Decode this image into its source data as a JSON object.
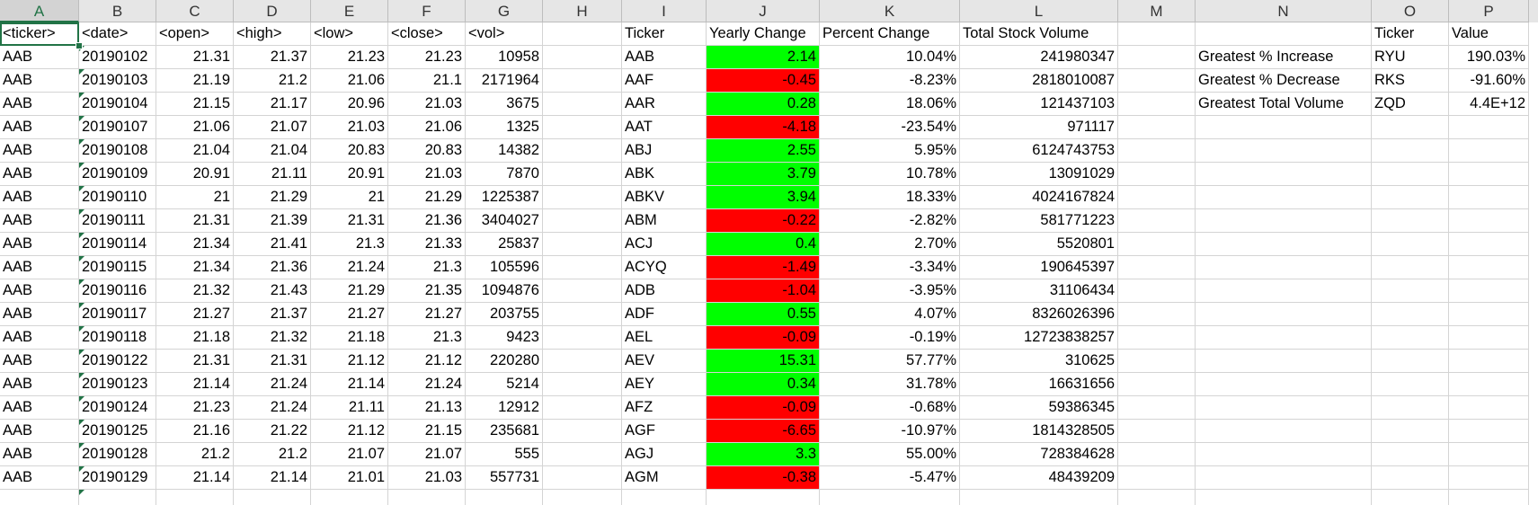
{
  "columns": [
    "A",
    "B",
    "C",
    "D",
    "E",
    "F",
    "G",
    "H",
    "I",
    "J",
    "K",
    "L",
    "M",
    "N",
    "O",
    "P"
  ],
  "selected_column": "A",
  "colors": {
    "positive": "#00ff00",
    "negative": "#ff0000",
    "accent": "#217346"
  },
  "rows": [
    [
      "<ticker>",
      "<date>",
      "<open>",
      "<high>",
      "<low>",
      "<close>",
      "<vol>",
      "",
      "Ticker",
      "Yearly Change",
      "Percent Change",
      "Total Stock Volume",
      "",
      "",
      "Ticker",
      "Value"
    ],
    [
      "AAB",
      "20190102",
      "21.31",
      "21.37",
      "21.23",
      "21.23",
      "10958",
      "",
      "AAB",
      "2.14",
      "10.04%",
      "241980347",
      "",
      "Greatest % Increase",
      "RYU",
      "190.03%"
    ],
    [
      "AAB",
      "20190103",
      "21.19",
      "21.2",
      "21.06",
      "21.1",
      "2171964",
      "",
      "AAF",
      "-0.45",
      "-8.23%",
      "2818010087",
      "",
      "Greatest % Decrease",
      "RKS",
      "-91.60%"
    ],
    [
      "AAB",
      "20190104",
      "21.15",
      "21.17",
      "20.96",
      "21.03",
      "3675",
      "",
      "AAR",
      "0.28",
      "18.06%",
      "121437103",
      "",
      "Greatest Total Volume",
      "ZQD",
      "4.4E+12"
    ],
    [
      "AAB",
      "20190107",
      "21.06",
      "21.07",
      "21.03",
      "21.06",
      "1325",
      "",
      "AAT",
      "-4.18",
      "-23.54%",
      "971117",
      "",
      "",
      "",
      ""
    ],
    [
      "AAB",
      "20190108",
      "21.04",
      "21.04",
      "20.83",
      "20.83",
      "14382",
      "",
      "ABJ",
      "2.55",
      "5.95%",
      "6124743753",
      "",
      "",
      "",
      ""
    ],
    [
      "AAB",
      "20190109",
      "20.91",
      "21.11",
      "20.91",
      "21.03",
      "7870",
      "",
      "ABK",
      "3.79",
      "10.78%",
      "13091029",
      "",
      "",
      "",
      ""
    ],
    [
      "AAB",
      "20190110",
      "21",
      "21.29",
      "21",
      "21.29",
      "1225387",
      "",
      "ABKV",
      "3.94",
      "18.33%",
      "4024167824",
      "",
      "",
      "",
      ""
    ],
    [
      "AAB",
      "20190111",
      "21.31",
      "21.39",
      "21.31",
      "21.36",
      "3404027",
      "",
      "ABM",
      "-0.22",
      "-2.82%",
      "581771223",
      "",
      "",
      "",
      ""
    ],
    [
      "AAB",
      "20190114",
      "21.34",
      "21.41",
      "21.3",
      "21.33",
      "25837",
      "",
      "ACJ",
      "0.4",
      "2.70%",
      "5520801",
      "",
      "",
      "",
      ""
    ],
    [
      "AAB",
      "20190115",
      "21.34",
      "21.36",
      "21.24",
      "21.3",
      "105596",
      "",
      "ACYQ",
      "-1.49",
      "-3.34%",
      "190645397",
      "",
      "",
      "",
      ""
    ],
    [
      "AAB",
      "20190116",
      "21.32",
      "21.43",
      "21.29",
      "21.35",
      "1094876",
      "",
      "ADB",
      "-1.04",
      "-3.95%",
      "31106434",
      "",
      "",
      "",
      ""
    ],
    [
      "AAB",
      "20190117",
      "21.27",
      "21.37",
      "21.27",
      "21.27",
      "203755",
      "",
      "ADF",
      "0.55",
      "4.07%",
      "8326026396",
      "",
      "",
      "",
      ""
    ],
    [
      "AAB",
      "20190118",
      "21.18",
      "21.32",
      "21.18",
      "21.3",
      "9423",
      "",
      "AEL",
      "-0.09",
      "-0.19%",
      "12723838257",
      "",
      "",
      "",
      ""
    ],
    [
      "AAB",
      "20190122",
      "21.31",
      "21.31",
      "21.12",
      "21.12",
      "220280",
      "",
      "AEV",
      "15.31",
      "57.77%",
      "310625",
      "",
      "",
      "",
      ""
    ],
    [
      "AAB",
      "20190123",
      "21.14",
      "21.24",
      "21.14",
      "21.24",
      "5214",
      "",
      "AEY",
      "0.34",
      "31.78%",
      "16631656",
      "",
      "",
      "",
      ""
    ],
    [
      "AAB",
      "20190124",
      "21.23",
      "21.24",
      "21.11",
      "21.13",
      "12912",
      "",
      "AFZ",
      "-0.09",
      "-0.68%",
      "59386345",
      "",
      "",
      "",
      ""
    ],
    [
      "AAB",
      "20190125",
      "21.16",
      "21.22",
      "21.12",
      "21.15",
      "235681",
      "",
      "AGF",
      "-6.65",
      "-10.97%",
      "1814328505",
      "",
      "",
      "",
      ""
    ],
    [
      "AAB",
      "20190128",
      "21.2",
      "21.2",
      "21.07",
      "21.07",
      "555",
      "",
      "AGJ",
      "3.3",
      "55.00%",
      "728384628",
      "",
      "",
      "",
      ""
    ],
    [
      "AAB",
      "20190129",
      "21.14",
      "21.14",
      "21.01",
      "21.03",
      "557731",
      "",
      "AGM",
      "-0.38",
      "-5.47%",
      "48439209",
      "",
      "",
      "",
      ""
    ],
    [
      "",
      "",
      "",
      "",
      "",
      "",
      "",
      "",
      "",
      "",
      "",
      "",
      "",
      "",
      "",
      ""
    ]
  ]
}
